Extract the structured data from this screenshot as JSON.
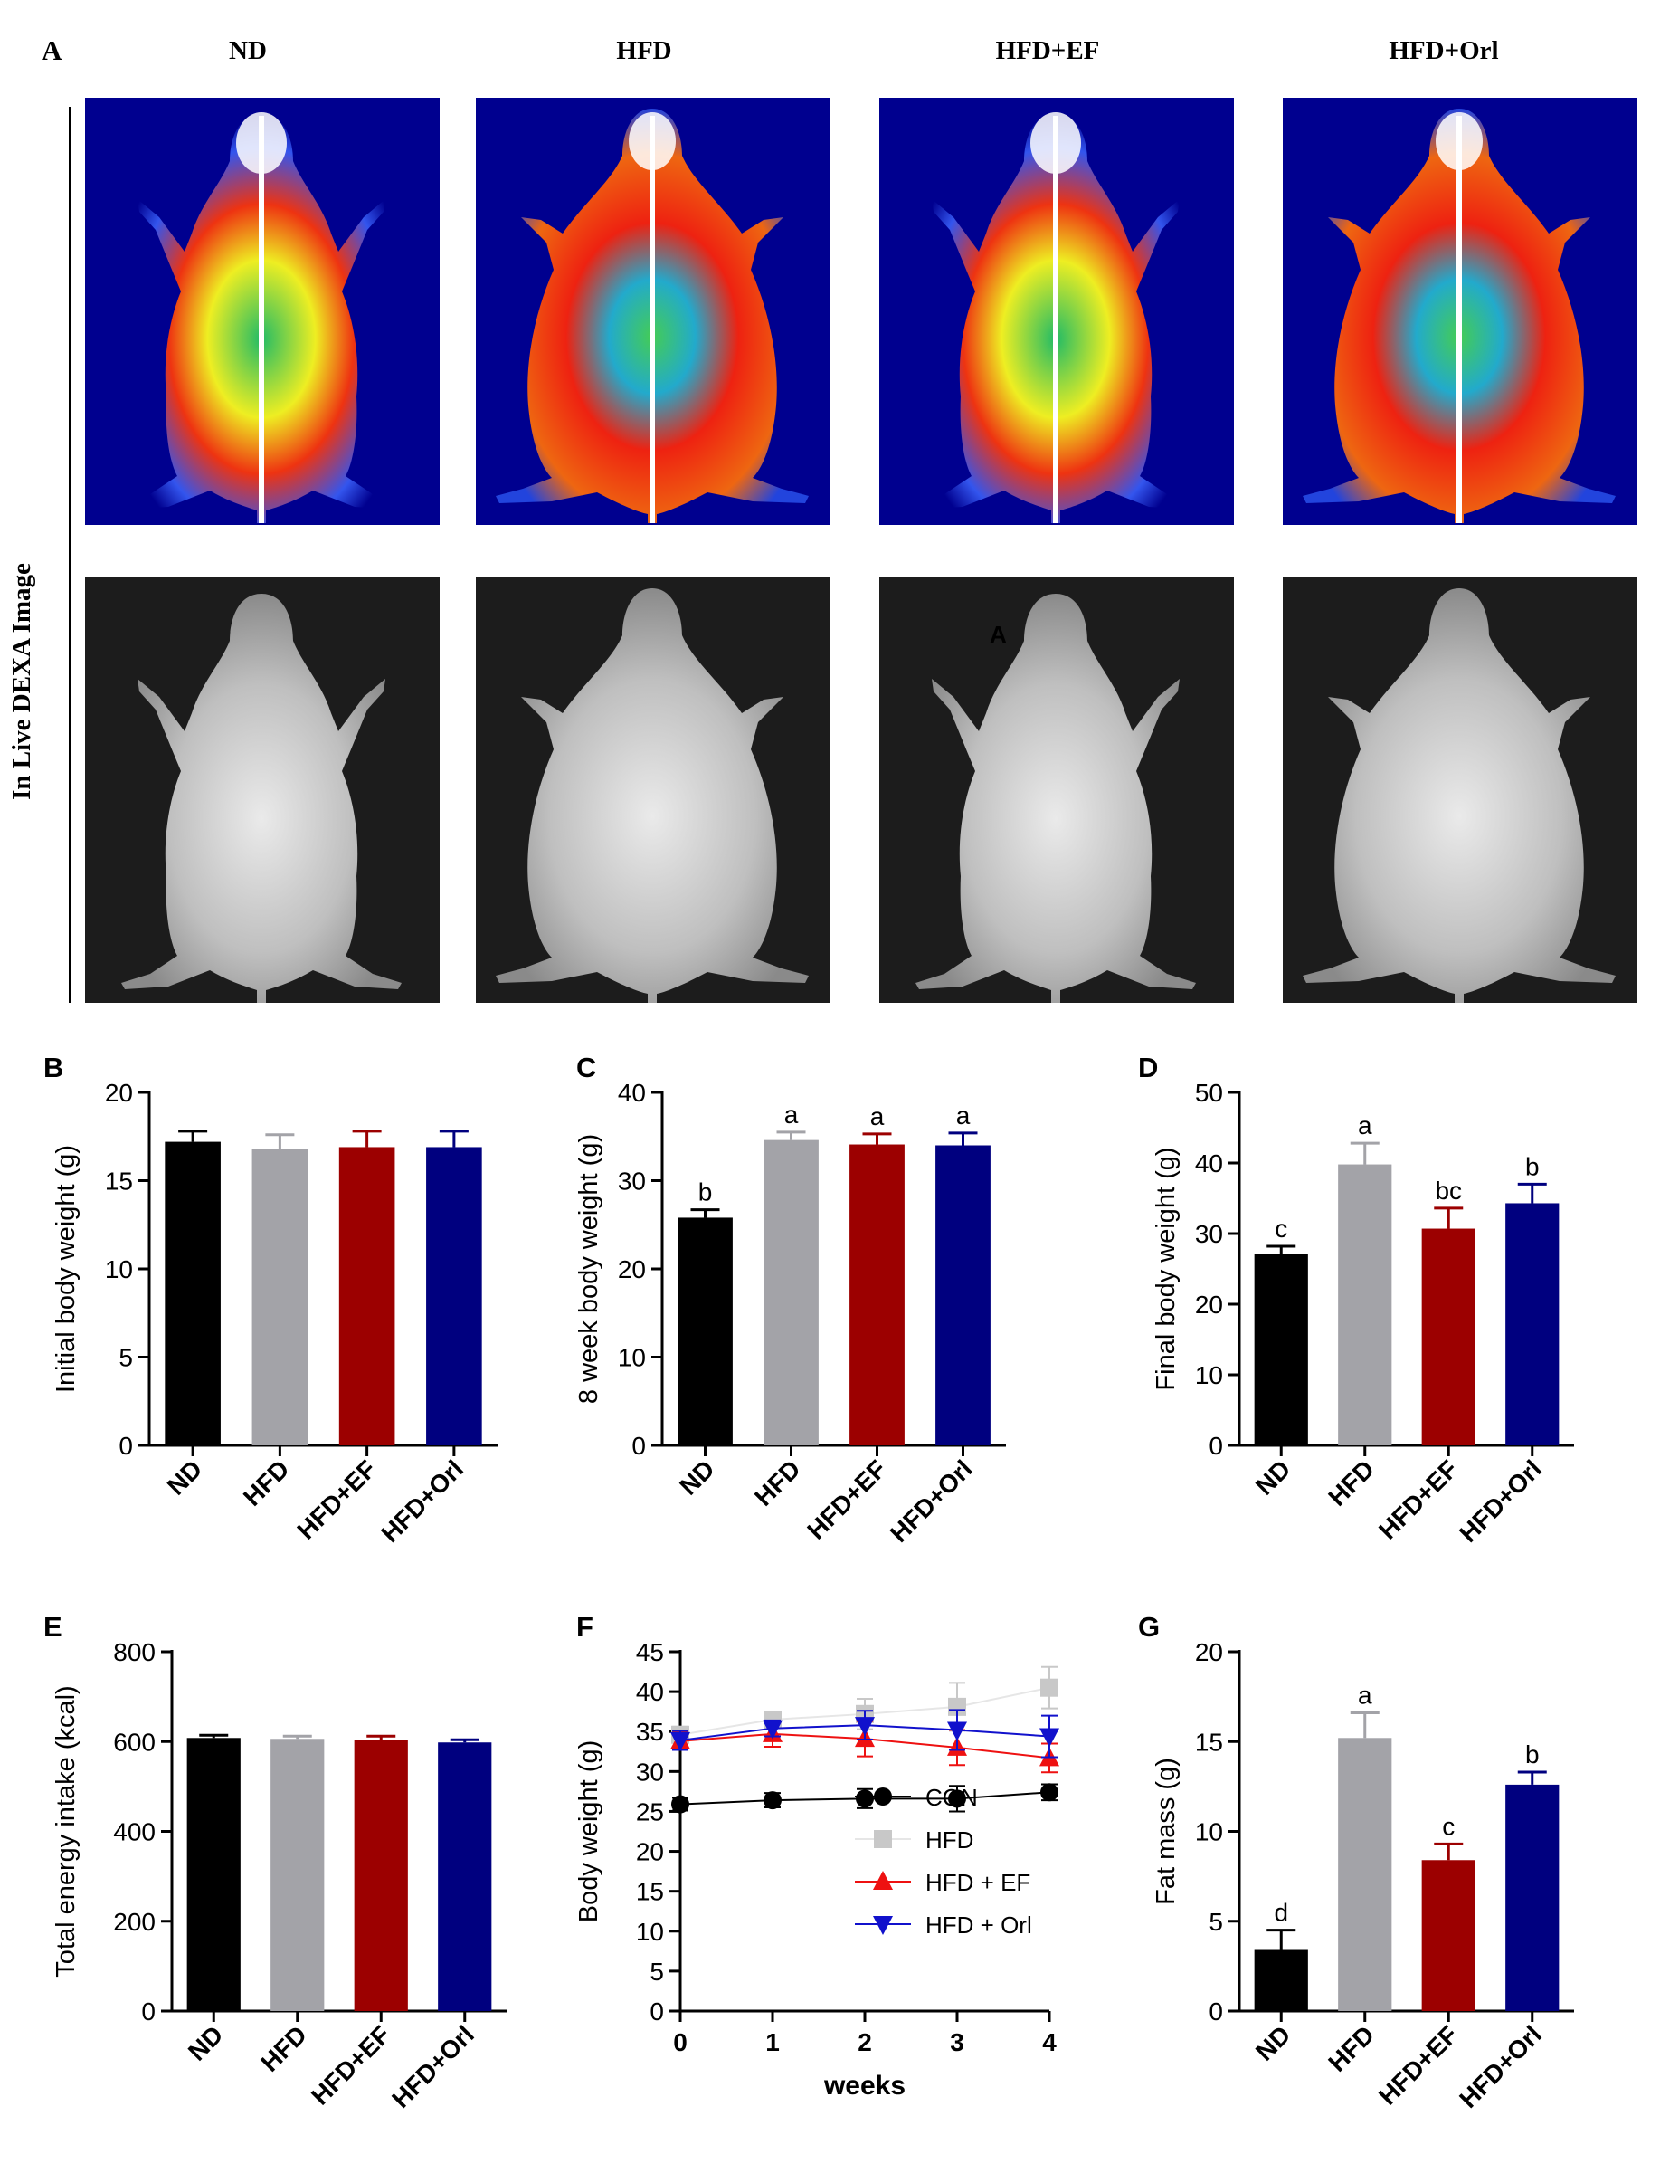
{
  "panelA": {
    "letter": "A",
    "side_label": "In Live DEXA Image",
    "columns": [
      "ND",
      "HFD",
      "HFD+EF",
      "HFD+Orl"
    ],
    "stray_mark": "A",
    "dexa_colors": {
      "background": "#00008f",
      "xray_background": "#1c1c1c"
    }
  },
  "chart_data": [
    {
      "id": "B",
      "letter": "B",
      "type": "bar",
      "ylabel": "Initial body weight (g)",
      "categories": [
        "ND",
        "HFD",
        "HFD+EF",
        "HFD+Orl"
      ],
      "values": [
        17.2,
        16.8,
        16.9,
        16.9
      ],
      "errors": [
        0.6,
        0.8,
        0.9,
        0.9
      ],
      "sig_labels": [
        "",
        "",
        "",
        ""
      ],
      "ylim": [
        0,
        20
      ],
      "yticks": [
        0,
        5,
        10,
        15,
        20
      ],
      "colors": [
        "#000000",
        "#a3a3a8",
        "#9c0000",
        "#00007f"
      ]
    },
    {
      "id": "C",
      "letter": "C",
      "type": "bar",
      "ylabel": "8 week body weight (g)",
      "categories": [
        "ND",
        "HFD",
        "HFD+EF",
        "HFD+Orl"
      ],
      "values": [
        25.8,
        34.6,
        34.1,
        34.0
      ],
      "errors": [
        0.9,
        0.9,
        1.2,
        1.4
      ],
      "sig_labels": [
        "b",
        "a",
        "a",
        "a"
      ],
      "ylim": [
        0,
        40
      ],
      "yticks": [
        0,
        10,
        20,
        30,
        40
      ],
      "colors": [
        "#000000",
        "#a3a3a8",
        "#9c0000",
        "#00007f"
      ]
    },
    {
      "id": "D",
      "letter": "D",
      "type": "bar",
      "ylabel": "Final body weight (g)",
      "categories": [
        "ND",
        "HFD",
        "HFD+EF",
        "HFD+Orl"
      ],
      "values": [
        27.1,
        39.8,
        30.7,
        34.3
      ],
      "errors": [
        1.1,
        3.0,
        2.9,
        2.7
      ],
      "sig_labels": [
        "c",
        "a",
        "bc",
        "b"
      ],
      "ylim": [
        0,
        50
      ],
      "yticks": [
        0,
        10,
        20,
        30,
        40,
        50
      ],
      "colors": [
        "#000000",
        "#a3a3a8",
        "#9c0000",
        "#00007f"
      ]
    },
    {
      "id": "E",
      "letter": "E",
      "type": "bar",
      "ylabel": "Total energy intake (kcal)",
      "categories": [
        "ND",
        "HFD",
        "HFD+EF",
        "HFD+Orl"
      ],
      "values": [
        608,
        606,
        603,
        598
      ],
      "errors": [
        6,
        6,
        9,
        6
      ],
      "sig_labels": [
        "",
        "",
        "",
        ""
      ],
      "ylim": [
        0,
        800
      ],
      "yticks": [
        0,
        200,
        400,
        600,
        800
      ],
      "colors": [
        "#000000",
        "#a3a3a8",
        "#9c0000",
        "#00007f"
      ]
    },
    {
      "id": "F",
      "letter": "F",
      "type": "line",
      "xlabel": "weeks",
      "ylabel": "Body weight (g)",
      "x": [
        0,
        1,
        2,
        3,
        4
      ],
      "xlim": [
        0,
        4
      ],
      "xticks": [
        0,
        1,
        2,
        3,
        4
      ],
      "ylim": [
        0,
        45
      ],
      "yticks": [
        0,
        5,
        10,
        15,
        20,
        25,
        30,
        35,
        40,
        45
      ],
      "series": [
        {
          "name": "CON",
          "values": [
            25.9,
            26.4,
            26.6,
            26.6,
            27.4
          ],
          "errors": [
            0.8,
            0.9,
            1.2,
            1.6,
            1.0
          ],
          "color": "#000000",
          "line_color": "#000000",
          "marker": "circle"
        },
        {
          "name": "HFD",
          "values": [
            34.6,
            36.5,
            37.2,
            38.1,
            40.5
          ],
          "errors": [
            1.0,
            0.9,
            1.9,
            3.0,
            2.6
          ],
          "color": "#c8c8c8",
          "line_color": "#e6e6e6",
          "marker": "square"
        },
        {
          "name": "HFD + EF",
          "values": [
            33.8,
            34.7,
            34.1,
            33.0,
            31.7
          ],
          "errors": [
            1.1,
            1.6,
            2.2,
            2.2,
            1.8
          ],
          "color": "#ee1111",
          "line_color": "#ee1111",
          "marker": "triangle-up"
        },
        {
          "name": "HFD + Orl",
          "values": [
            33.9,
            35.4,
            35.8,
            35.2,
            34.4
          ],
          "errors": [
            1.2,
            1.0,
            1.8,
            2.5,
            2.6
          ],
          "color": "#1111cc",
          "line_color": "#1111cc",
          "marker": "triangle-down"
        }
      ]
    },
    {
      "id": "G",
      "letter": "G",
      "type": "bar",
      "ylabel": "Fat mass (g)",
      "categories": [
        "ND",
        "HFD",
        "HFD+EF",
        "HFD+Orl"
      ],
      "values": [
        3.4,
        15.2,
        8.4,
        12.6
      ],
      "errors": [
        1.1,
        1.4,
        0.9,
        0.7
      ],
      "sig_labels": [
        "d",
        "a",
        "c",
        "b"
      ],
      "ylim": [
        0,
        20
      ],
      "yticks": [
        0,
        5,
        10,
        15,
        20
      ],
      "colors": [
        "#000000",
        "#a3a3a8",
        "#9c0000",
        "#00007f"
      ]
    }
  ]
}
